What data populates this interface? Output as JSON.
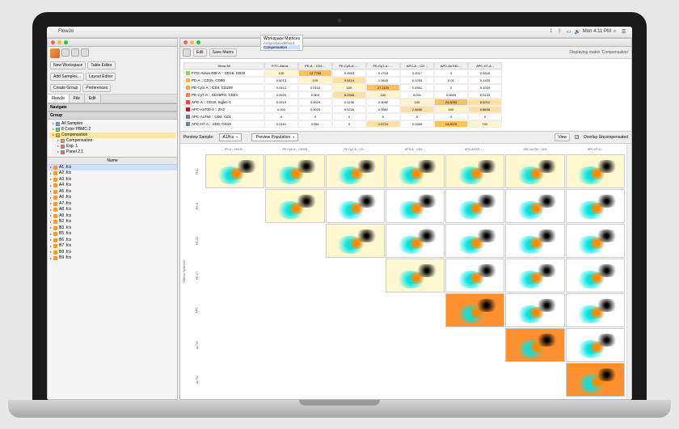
{
  "menubar": {
    "app": "FlowJo",
    "clock": "Mon 4:11 PM"
  },
  "winA": {
    "tabs": [
      "FlowJo",
      "File",
      "Edit"
    ],
    "buttons": {
      "new_ws": "New Workspace",
      "table": "Table Editor",
      "add_samples": "Add Samples...",
      "layout": "Layout Editor",
      "create_group": "Create Group",
      "prefs": "Preferences"
    },
    "extra": {
      "ws_matrices": "Workspace Matrices",
      "acq": "Acquisition-defined",
      "comp": "Compensation"
    },
    "nav_hdr": "Navigate",
    "group_hdr": "Group",
    "groups": [
      {
        "label": "All Samples",
        "ic": "b"
      },
      {
        "label": "8 Color PBMC-2",
        "ic": "g"
      },
      {
        "label": "Compensation",
        "ic": "o",
        "sel": true
      },
      {
        "label": "Compensation",
        "ic": "o",
        "ind": 1
      },
      {
        "label": "Exp. 1",
        "ic": "r",
        "ind": 1
      },
      {
        "label": "Panel 2.1",
        "ic": "r",
        "ind": 1
      }
    ],
    "name_hdr": "Name",
    "files": [
      "A1 .fcs",
      "A2 .fcs",
      "A3 .fcs",
      "A4 .fcs",
      "A5 .fcs",
      "A6 .fcs",
      "A7 .fcs",
      "A8 .fcs",
      "A9 .fcs",
      "B2 .fcs",
      "B3 .fcs",
      "B5 .fcs",
      "B6 .fcs",
      "B7 .fcs",
      "B8 .fcs",
      "B9 .fcs"
    ]
  },
  "winB": {
    "btns": {
      "edit": "Edit",
      "save": "Save Matrix"
    },
    "disp": "Displaying matrix 'Compensation'",
    "cols": [
      "FITC-Alexa…",
      "PE-A :: CD1…",
      "PE-CyS-A ::…",
      "PE-Cy7-A ::…",
      "APC-A :: CD…",
      "APC-Ax700-…",
      "APC-H7-A ::"
    ],
    "rows": [
      {
        "sw": "#8dd35f",
        "p": "FITC-Alexa 488-A :: CD16, CD32"
      },
      {
        "sw": "#ffb347",
        "p": "PE-A :: CD15, CD80"
      },
      {
        "sw": "#f4a460",
        "p": "PE-CyS-A :: CD3, CD209"
      },
      {
        "sw": "#ff7f50",
        "p": "PE-Cy7-A :: CD45RO, CD24"
      },
      {
        "sw": "#e74c3c",
        "p": "APC-A :: CD19, Siglec-1"
      },
      {
        "sw": "#b22222",
        "p": "APC-Ax700-A :: 2H2"
      },
      {
        "sw": "#708090",
        "p": "APC-Ax750 :: CD4, CD1"
      },
      {
        "sw": "#708090",
        "p": "APC-H7-A :: CD8, CD19"
      }
    ],
    "matrix": [
      [
        "100",
        "12.7766",
        "0.9583",
        "0.1718",
        "0.1517",
        "0",
        "0.0118"
      ],
      [
        "0.8213",
        "100",
        "9.6114",
        "1.0843",
        "0.1265",
        "0.01",
        "0.1453"
      ],
      [
        "0.0412",
        "0.0103",
        "100",
        "27.1103",
        "0.5361",
        "0",
        "0.1054"
      ],
      [
        "0.0025",
        "0.003",
        "8.2366",
        "100",
        "0.031",
        "0.0659",
        "0.0133"
      ],
      [
        "0.0019",
        "0.0029",
        "0.0236",
        "0.0092",
        "100",
        "24.8205",
        "8.8212"
      ],
      [
        "0.002",
        "0.0025",
        "0.0226",
        "0.0082",
        "2.4696",
        "100",
        "9.8658"
      ],
      [
        "0",
        "0",
        "0",
        "0",
        "0",
        "0",
        "0"
      ],
      [
        "0.0161",
        "0.051",
        "0",
        "1.6724",
        "0.0369",
        "14.8978",
        "100"
      ]
    ],
    "hot": [
      [
        0,
        1,
        2
      ],
      [
        1,
        2,
        1
      ],
      [
        2,
        3,
        2
      ],
      [
        3,
        2,
        1
      ],
      [
        4,
        5,
        2
      ],
      [
        4,
        6,
        1
      ],
      [
        5,
        6,
        1
      ],
      [
        5,
        4,
        1
      ],
      [
        7,
        5,
        2
      ],
      [
        7,
        3,
        1
      ]
    ],
    "preview": {
      "sample_lbl": "Preview Sample:",
      "sample": "A1/fcs",
      "pop_lbl": "Preview Population",
      "view": "View",
      "overlay": "Overlay Uncompensated"
    },
    "plot_cols": [
      "PE-A :: CD15/…",
      "PE-CyS-A :: CD209",
      "PE-Cy7-A :: CD…",
      "APC-A :: CD1…",
      "APC-Ax700 :: …",
      "APC-Ax750 :: CD1",
      "APC-H7-A ::"
    ],
    "plot_rows": [
      "FITC",
      "PE-A",
      "PE-C5",
      "PE-C7",
      "APC",
      "Ax700",
      "Ax750"
    ],
    "ylabel": "Matrix Spillover"
  }
}
